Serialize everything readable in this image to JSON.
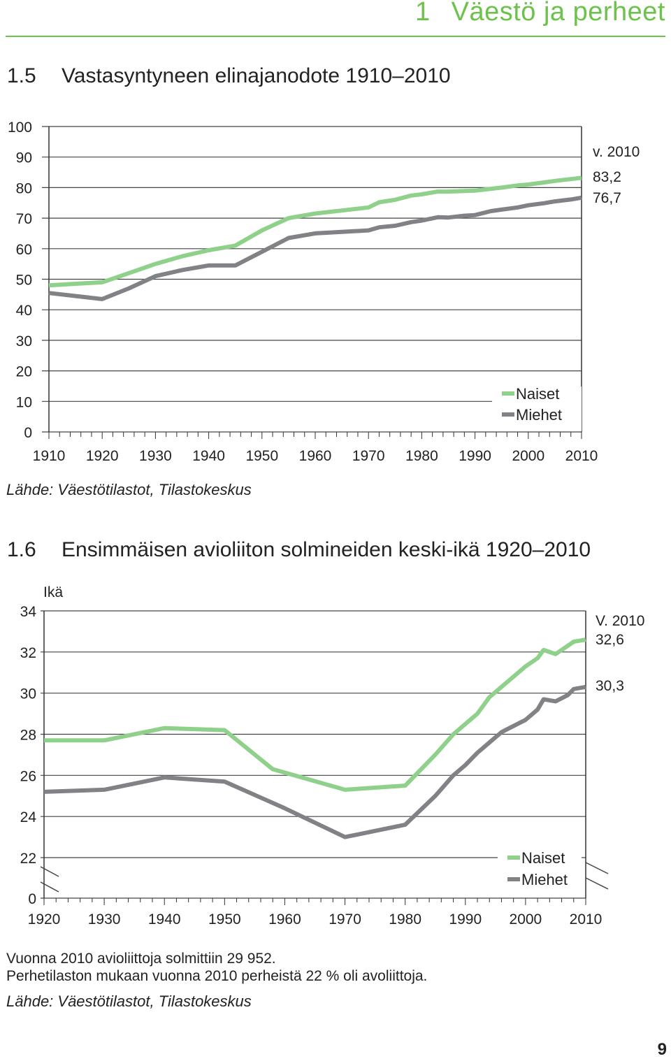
{
  "header": {
    "section_number": "1",
    "section_title": "Väestö ja perheet"
  },
  "page_number": "9",
  "colors": {
    "accent": "#6cc24a",
    "naiset": "#8fd18a",
    "miehet": "#808285"
  },
  "chart_data": [
    {
      "type": "line",
      "number": "1.5",
      "title": "Vastasyntyneen elinajanodote 1910–2010",
      "ylim": [
        0,
        100
      ],
      "yticks": [
        0,
        10,
        20,
        30,
        40,
        50,
        60,
        70,
        80,
        90,
        100
      ],
      "xlim": [
        1910,
        2010
      ],
      "xticks": [
        1910,
        1920,
        1930,
        1940,
        1950,
        1960,
        1970,
        1980,
        1990,
        2000,
        2010
      ],
      "grid": true,
      "legend_position": "bottom-right",
      "series": [
        {
          "name": "Naiset",
          "color": "#8fd18a",
          "x": [
            1910,
            1920,
            1925,
            1930,
            1935,
            1940,
            1945,
            1950,
            1955,
            1960,
            1965,
            1970,
            1972,
            1975,
            1978,
            1980,
            1983,
            1985,
            1988,
            1990,
            1993,
            1995,
            1998,
            2000,
            2003,
            2005,
            2008,
            2010
          ],
          "y": [
            48,
            49,
            52,
            55,
            57.5,
            59.5,
            61,
            66,
            70,
            71.5,
            72.5,
            73.5,
            75.2,
            76,
            77.4,
            77.8,
            78.7,
            78.7,
            78.9,
            79,
            79.6,
            80,
            80.7,
            81,
            81.7,
            82.2,
            82.8,
            83.2
          ]
        },
        {
          "name": "Miehet",
          "color": "#808285",
          "x": [
            1910,
            1920,
            1925,
            1930,
            1935,
            1940,
            1945,
            1950,
            1955,
            1960,
            1965,
            1970,
            1972,
            1975,
            1978,
            1980,
            1983,
            1985,
            1988,
            1990,
            1993,
            1995,
            1998,
            2000,
            2003,
            2005,
            2008,
            2010
          ],
          "y": [
            45.5,
            43.5,
            47,
            51,
            53,
            54.5,
            54.5,
            59,
            63.5,
            65,
            65.5,
            66,
            67,
            67.5,
            68.7,
            69.2,
            70.3,
            70.2,
            70.8,
            71,
            72.3,
            72.8,
            73.5,
            74.2,
            74.9,
            75.5,
            76.1,
            76.7
          ]
        }
      ],
      "annotations": {
        "year_label": "v. 2010",
        "naiset_value": "83,2",
        "miehet_value": "76,7"
      },
      "source": "Lähde: Väestötilastot, Tilastokeskus"
    },
    {
      "type": "line",
      "number": "1.6",
      "title": "Ensimmäisen avioliiton solmineiden keski-ikä 1920–2010",
      "ylabel": "Ikä",
      "ylim": [
        0,
        34
      ],
      "axis_break": [
        0,
        22
      ],
      "yticks": [
        0,
        22,
        24,
        26,
        28,
        30,
        32,
        34
      ],
      "xlim": [
        1920,
        2010
      ],
      "xticks": [
        1920,
        1930,
        1940,
        1950,
        1960,
        1970,
        1980,
        1990,
        2000,
        2010
      ],
      "grid": true,
      "legend_position": "bottom-right",
      "series": [
        {
          "name": "Naiset",
          "color": "#8fd18a",
          "x": [
            1920,
            1930,
            1940,
            1950,
            1958,
            1970,
            1980,
            1985,
            1988,
            1990,
            1992,
            1994,
            1996,
            1998,
            2000,
            2002,
            2003,
            2005,
            2007,
            2008,
            2010
          ],
          "y": [
            27.7,
            27.7,
            28.3,
            28.2,
            26.3,
            25.3,
            25.5,
            27,
            28,
            28.5,
            29,
            29.8,
            30.3,
            30.8,
            31.3,
            31.7,
            32.1,
            31.9,
            32.3,
            32.5,
            32.6
          ]
        },
        {
          "name": "Miehet",
          "color": "#808285",
          "x": [
            1920,
            1930,
            1940,
            1950,
            1960,
            1970,
            1980,
            1985,
            1988,
            1990,
            1992,
            1994,
            1996,
            1998,
            2000,
            2002,
            2003,
            2005,
            2007,
            2008,
            2010
          ],
          "y": [
            25.2,
            25.3,
            25.9,
            25.7,
            24.4,
            23,
            23.6,
            25,
            26,
            26.5,
            27.1,
            27.6,
            28.1,
            28.4,
            28.7,
            29.2,
            29.7,
            29.6,
            29.9,
            30.2,
            30.3
          ]
        }
      ],
      "annotations": {
        "year_label": "V. 2010",
        "naiset_value": "32,6",
        "miehet_value": "30,3"
      },
      "notes": [
        "Vuonna 2010 avioliittoja solmittiin 29 952.",
        "Perhetilaston mukaan vuonna 2010 perheistä 22 % oli avoliittoja."
      ],
      "source": "Lähde: Väestötilastot, Tilastokeskus"
    }
  ]
}
